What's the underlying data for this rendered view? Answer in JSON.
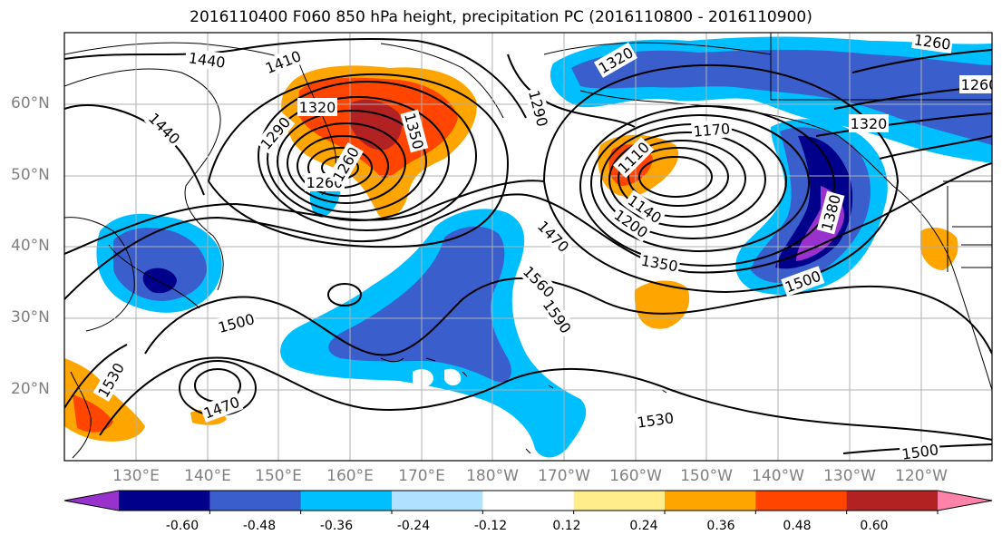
{
  "title": "2016110400 F060 850 hPa height, precipitation PC (2016110800 - 2016110900)",
  "chart_data": {
    "type": "heatmap",
    "title": "2016110400 F060 850 hPa height, precipitation PC (2016110800 - 2016110900)",
    "x_ticks": [
      "130°E",
      "140°E",
      "150°E",
      "160°E",
      "170°E",
      "180°W",
      "170°W",
      "160°W",
      "150°W",
      "140°W",
      "130°W",
      "120°W"
    ],
    "y_ticks": [
      "60°N",
      "50°N",
      "40°N",
      "30°N",
      "20°N"
    ],
    "contour_labels": [
      "1440",
      "1410",
      "1290",
      "1320",
      "1350",
      "1440",
      "1290",
      "1260",
      "1260",
      "1320",
      "1170",
      "1110",
      "1140",
      "1200",
      "1470",
      "1350",
      "1560",
      "1590",
      "1500",
      "1500",
      "1530",
      "1470",
      "1530",
      "1500",
      "1380",
      "1320",
      "1260",
      "1260"
    ],
    "colorbar": {
      "ticks": [
        "-0.60",
        "-0.48",
        "-0.36",
        "-0.24",
        "-0.12",
        "0.12",
        "0.24",
        "0.36",
        "0.48",
        "0.60"
      ],
      "colors": [
        "#9932cc",
        "#00008b",
        "#3a5fcd",
        "#00bfff",
        "#b0e2ff",
        "#ffffff",
        "#ffec8b",
        "#ffa500",
        "#ff4500",
        "#b22222",
        "#ff82ab"
      ],
      "extend": "both"
    },
    "grid": true
  }
}
